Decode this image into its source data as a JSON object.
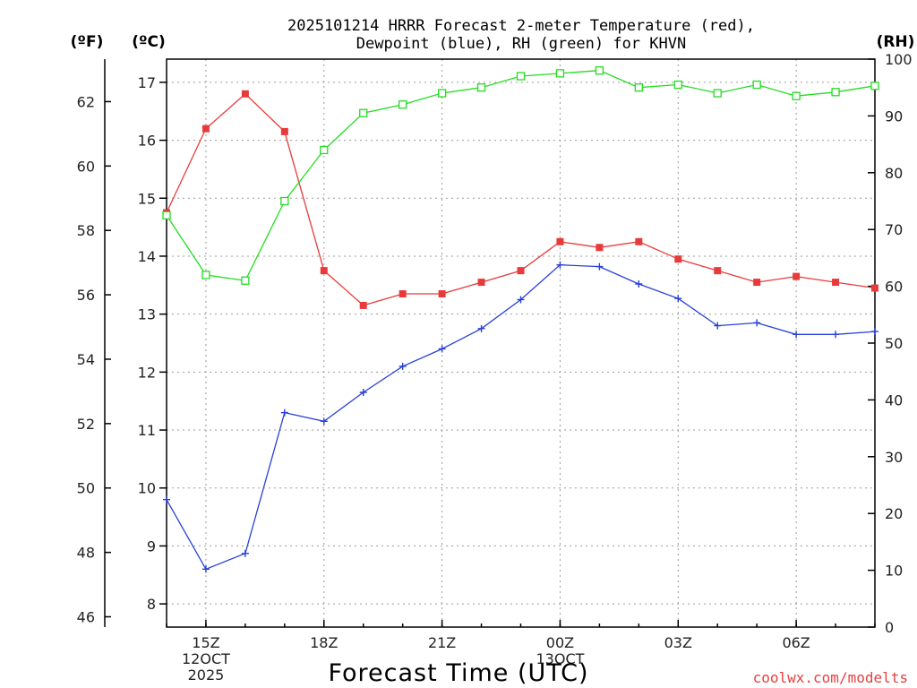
{
  "chart_data": {
    "type": "line",
    "title_line1": "2025101214 HRRR Forecast 2-meter Temperature (red),",
    "title_line2": "Dewpoint (blue), RH (green) for KHVN",
    "xlabel": "Forecast Time (UTC)",
    "credit": "coolwx.com/modelts",
    "unit_left_f": "(ºF)",
    "unit_left_c": "(ºC)",
    "unit_right": "(RH)",
    "x_hours": [
      14,
      15,
      16,
      17,
      18,
      19,
      20,
      21,
      22,
      23,
      24,
      25,
      26,
      27,
      28,
      29,
      30,
      31,
      32
    ],
    "x_ticks": [
      {
        "hour": 15,
        "label": "15Z",
        "sub1": "12OCT",
        "sub2": "2025"
      },
      {
        "hour": 18,
        "label": "18Z",
        "sub1": "",
        "sub2": ""
      },
      {
        "hour": 21,
        "label": "21Z",
        "sub1": "",
        "sub2": ""
      },
      {
        "hour": 24,
        "label": "00Z",
        "sub1": "13OCT",
        "sub2": ""
      },
      {
        "hour": 27,
        "label": "03Z",
        "sub1": "",
        "sub2": ""
      },
      {
        "hour": 30,
        "label": "06Z",
        "sub1": "",
        "sub2": ""
      }
    ],
    "xlim": [
      14,
      32
    ],
    "celsius_ticks": [
      8,
      9,
      10,
      11,
      12,
      13,
      14,
      15,
      16,
      17
    ],
    "celsius_lim": [
      7.6,
      17.4
    ],
    "fahrenheit_ticks": [
      46,
      48,
      50,
      52,
      54,
      56,
      58,
      60,
      62
    ],
    "rh_ticks": [
      0,
      10,
      20,
      30,
      40,
      50,
      60,
      70,
      80,
      90,
      100
    ],
    "rh_lim": [
      0,
      100
    ],
    "series": [
      {
        "name": "Temperature",
        "unit": "C",
        "color": "#e83a3a",
        "marker": "filled-square",
        "values": [
          14.75,
          16.2,
          16.8,
          16.15,
          13.75,
          13.15,
          13.35,
          13.35,
          13.55,
          13.75,
          14.25,
          14.15,
          14.25,
          13.95,
          13.75,
          13.55,
          13.65,
          13.55,
          13.45
        ]
      },
      {
        "name": "Dewpoint",
        "unit": "C",
        "color": "#2840d8",
        "marker": "plus",
        "values": [
          9.8,
          8.6,
          8.87,
          11.3,
          11.15,
          11.65,
          12.1,
          12.4,
          12.75,
          13.25,
          13.85,
          13.82,
          13.52,
          13.27,
          12.8,
          12.85,
          12.65,
          12.65,
          12.7
        ]
      },
      {
        "name": "RH",
        "unit": "%",
        "color": "#22dd22",
        "marker": "open-square",
        "values": [
          72.5,
          62,
          61,
          75,
          84,
          90.5,
          92,
          94,
          95,
          97,
          97.5,
          98,
          95,
          95.5,
          94,
          95.5,
          93.5,
          94.2,
          95.3
        ]
      }
    ]
  }
}
